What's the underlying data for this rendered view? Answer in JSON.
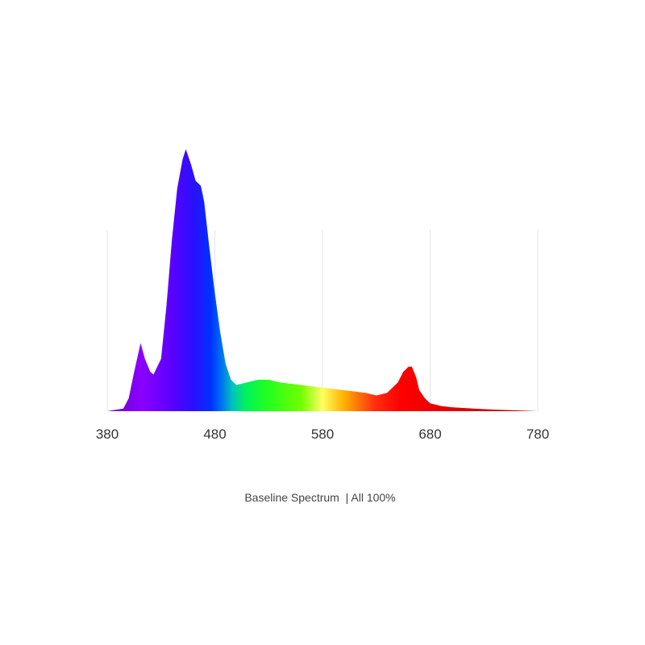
{
  "chart_data": {
    "type": "area",
    "title": "Baseline Spectrum  | All 100%",
    "x": [
      380,
      395,
      400,
      405,
      411,
      415,
      420,
      423,
      430,
      435,
      440,
      445,
      450,
      453,
      458,
      462,
      467,
      470,
      475,
      480,
      485,
      490,
      495,
      500,
      510,
      520,
      530,
      540,
      560,
      580,
      600,
      620,
      630,
      640,
      650,
      655,
      660,
      663,
      667,
      670,
      675,
      680,
      690,
      700,
      720,
      740,
      760,
      780
    ],
    "values": [
      0,
      1,
      5,
      15,
      26,
      20,
      15,
      14,
      20,
      40,
      65,
      85,
      96,
      100,
      94,
      88,
      86,
      80,
      62,
      45,
      30,
      18,
      12,
      10,
      11,
      12,
      12,
      11,
      10,
      9,
      8,
      7,
      6,
      7,
      11,
      15,
      17,
      17,
      13,
      8,
      5,
      3,
      2,
      1.5,
      1,
      0.6,
      0.3,
      0
    ],
    "xlim": [
      380,
      780
    ],
    "ylim": [
      0,
      100
    ],
    "xticks": [
      380,
      480,
      580,
      680,
      780
    ],
    "grid": true
  }
}
